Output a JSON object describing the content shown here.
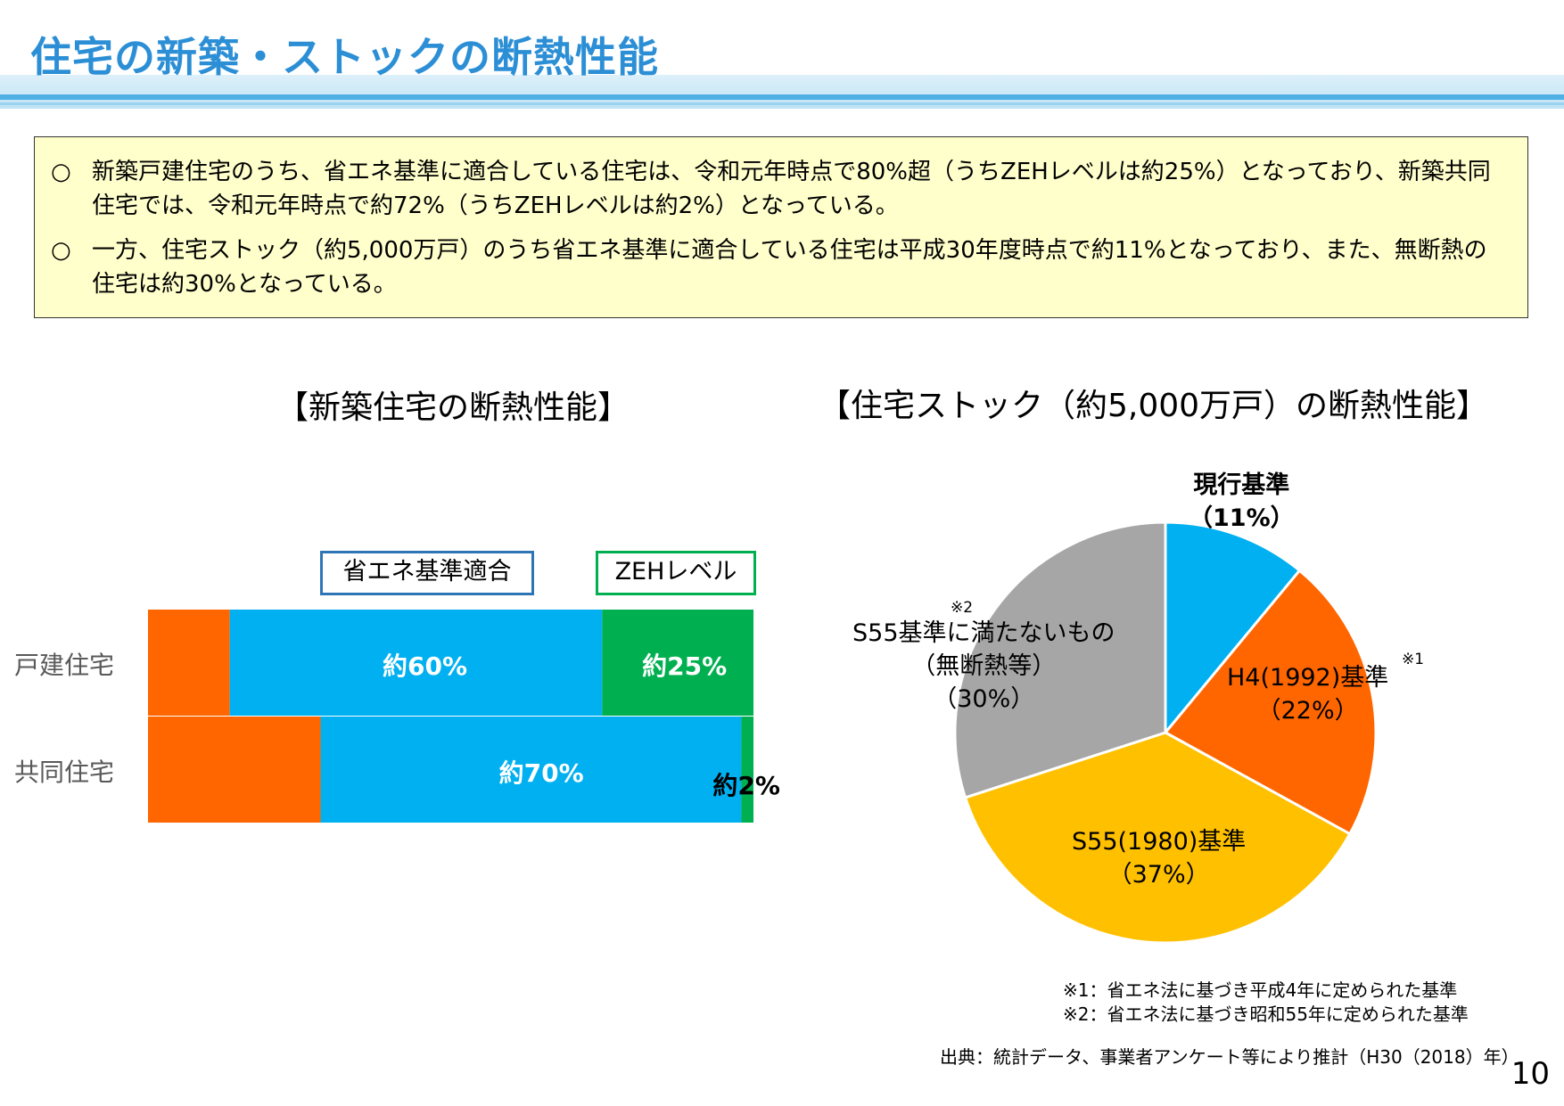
{
  "page": {
    "title": "住宅の新築・ストックの断熱性能",
    "page_number": "10"
  },
  "summary": {
    "bullet": "○",
    "items": [
      "新築戸建住宅のうち、省エネ基準に適合している住宅は、令和元年時点で80%超（うちZEHレベルは約25%）となっており、新築共同住宅では、令和元年時点で約72%（うちZEHレベルは約2%）となっている。",
      "一方、住宅ストック（約5,000万戸）のうち省エネ基準に適合している住宅は平成30年度時点で約11%となっており、また、無断熱の住宅は約30%となっている。"
    ]
  },
  "colors": {
    "not_compliant": "#ff6600",
    "compliant": "#00b0f0",
    "zeh": "#00b050",
    "pie_current": "#00b0f0",
    "pie_h4": "#ff6600",
    "pie_s55": "#ffc000",
    "pie_below": "#a6a6a6",
    "title": "#2c8fd6"
  },
  "chart_data": [
    {
      "type": "bar",
      "orientation": "horizontal-stacked",
      "title": "【新築住宅の断熱性能】",
      "categories": [
        "戸建住宅",
        "共同住宅"
      ],
      "xlim": [
        0,
        100
      ],
      "legend": [
        {
          "label": "省エネ基準適合",
          "border": "#2e75b6"
        },
        {
          "label": "ZEHレベル",
          "border": "#00b050"
        }
      ],
      "series": [
        {
          "key": "not_compliant",
          "values": [
            13.5,
            28.5
          ],
          "labels": [
            "",
            ""
          ]
        },
        {
          "key": "compliant",
          "values": [
            61.5,
            69.5
          ],
          "labels": [
            "約60%",
            "約70%"
          ]
        },
        {
          "key": "zeh",
          "values": [
            25,
            2
          ],
          "labels": [
            "約25%",
            "約2%"
          ]
        }
      ]
    },
    {
      "type": "pie",
      "title": "【住宅ストック（約5,000万戸）の断熱性能】",
      "slices": [
        {
          "key": "pie_current",
          "value": 11,
          "label": "現行基準",
          "pct": "（11%）"
        },
        {
          "key": "pie_h4",
          "value": 22,
          "label": "H4(1992)基準",
          "pct": "（22%）",
          "note": "※1"
        },
        {
          "key": "pie_s55",
          "value": 37,
          "label": "S55(1980)基準",
          "pct": "（37%）"
        },
        {
          "key": "pie_below",
          "value": 30,
          "label": "S55基準に満たないもの",
          "sub": "（無断熱等）",
          "pct": "（30%）",
          "note": "※2"
        }
      ]
    }
  ],
  "footnotes": [
    "※1：省エネ法に基づき平成4年に定められた基準",
    "※2：省エネ法に基づき昭和55年に定められた基準"
  ],
  "source": "出典：統計データ、事業者アンケート等により推計（H30（2018）年）"
}
